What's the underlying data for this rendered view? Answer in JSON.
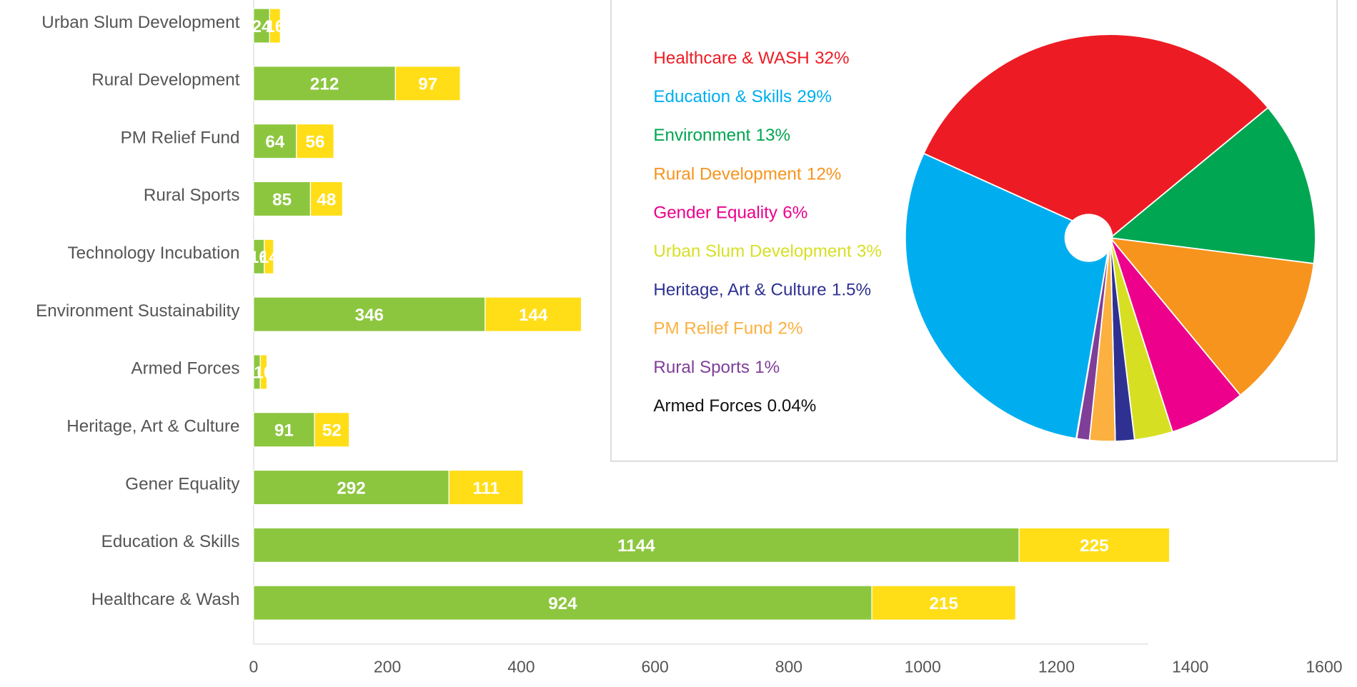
{
  "chart_data": [
    {
      "type": "hbar-stacked",
      "categories": [
        "Urban Slum Development",
        "Rural Development",
        "PM Relief Fund",
        "Rural Sports",
        "Technology Incubation",
        "Environment Sustainability",
        "Armed Forces",
        "Heritage, Art & Culture",
        "Gener Equality",
        "Education & Skills",
        "Healthcare & Wash"
      ],
      "series": [
        {
          "color": "#8cc63f",
          "values": [
            24,
            212,
            64,
            85,
            16,
            346,
            10,
            91,
            292,
            1144,
            924
          ]
        },
        {
          "color": "#ffde17",
          "values": [
            16,
            97,
            56,
            48,
            14,
            144,
            10,
            52,
            111,
            225,
            215
          ]
        }
      ],
      "xlim": [
        0,
        1600
      ],
      "xticks": [
        0,
        200,
        400,
        600,
        800,
        1000,
        1200,
        1400,
        1600
      ]
    },
    {
      "type": "pie",
      "categories": [
        "Healthcare & WASH",
        "Education & Skills",
        "Environment",
        "Rural Development",
        "Gender Equality",
        "Urban Slum Development",
        "Heritage, Art & Culture",
        "PM Relief Fund",
        "Rural Sports",
        "Armed Forces"
      ],
      "values": [
        32,
        29,
        13,
        12,
        6,
        3,
        1.5,
        2,
        1,
        0.04
      ],
      "value_labels": [
        "32%",
        "29%",
        "13%",
        "12%",
        "6%",
        "3%",
        "1.5%",
        "2%",
        "1%",
        "0.04%"
      ],
      "colors": [
        "#ed1c24",
        "#00aeef",
        "#00a651",
        "#f7941d",
        "#ec008c",
        "#d7df23",
        "#2e3192",
        "#fbb040",
        "#7f3f98",
        "#111111"
      ]
    }
  ]
}
